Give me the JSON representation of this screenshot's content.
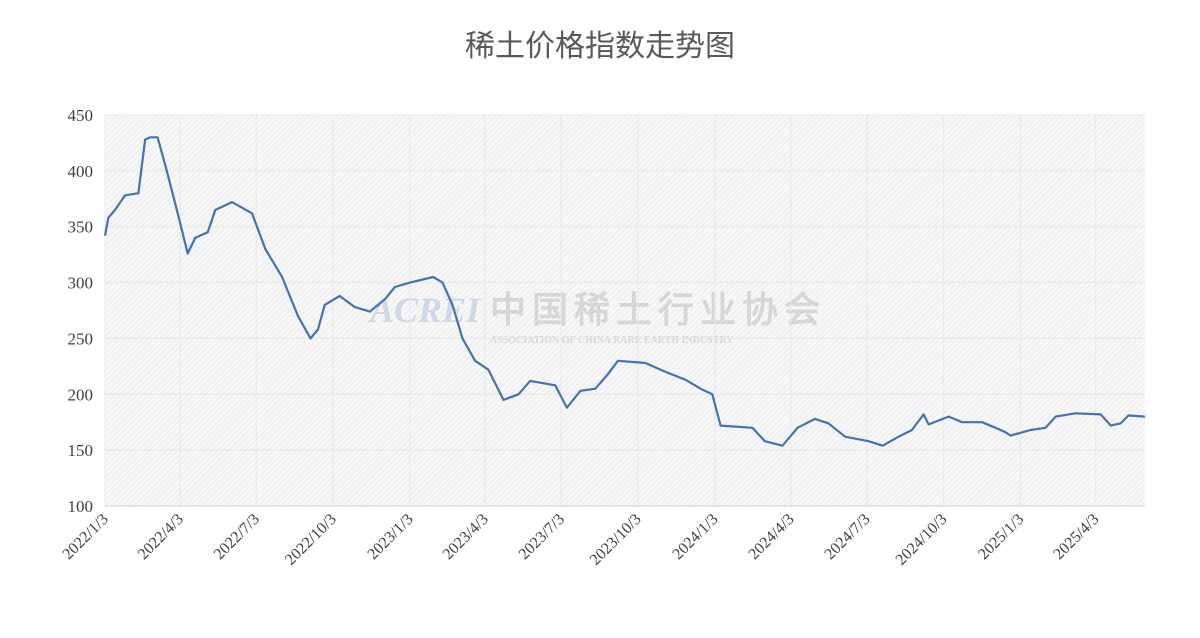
{
  "chart_data": {
    "type": "line",
    "title": "稀土价格指数走势图",
    "watermark": {
      "logo": "ACREI",
      "name": "中国稀土行业协会",
      "name_en": "ASSOCIATION OF CHINA RARE EARTH INDUSTRY"
    },
    "x": [
      "2022/1/3",
      "2022/1/7",
      "2022/1/15",
      "2022/1/27",
      "2022/2/12",
      "2022/2/20",
      "2022/2/26",
      "2022/3/7",
      "2022/3/18",
      "2022/3/31",
      "2022/4/12",
      "2022/4/21",
      "2022/5/6",
      "2022/5/15",
      "2022/6/4",
      "2022/6/28",
      "2022/7/14",
      "2022/8/3",
      "2022/8/22",
      "2022/9/6",
      "2022/9/15",
      "2022/9/23",
      "2022/10/11",
      "2022/10/29",
      "2022/11/16",
      "2022/12/4",
      "2022/12/16",
      "2023/1/3",
      "2023/1/31",
      "2023/2/11",
      "2023/2/23",
      "2023/3/7",
      "2023/3/22",
      "2023/4/7",
      "2023/4/25",
      "2023/5/13",
      "2023/5/27",
      "2023/6/26",
      "2023/7/10",
      "2023/7/26",
      "2023/8/13",
      "2023/8/28",
      "2023/9/9",
      "2023/10/12",
      "2023/11/5",
      "2023/11/29",
      "2023/12/17",
      "2023/12/31",
      "2024/1/10",
      "2024/2/17",
      "2024/3/3",
      "2024/3/24",
      "2024/4/11",
      "2024/5/2",
      "2024/5/18",
      "2024/6/7",
      "2024/7/5",
      "2024/7/22",
      "2024/8/10",
      "2024/8/26",
      "2024/9/9",
      "2024/9/15",
      "2024/10/9",
      "2024/10/25",
      "2024/11/18",
      "2024/12/4",
      "2024/12/16",
      "2024/12/22",
      "2025/1/15",
      "2025/2/2",
      "2025/2/14",
      "2025/3/10",
      "2025/4/9",
      "2025/4/21",
      "2025/5/3",
      "2025/5/12",
      "2025/6/1"
    ],
    "series": [
      {
        "name": "稀土价格指数",
        "color": "#4472b4",
        "values": [
          342,
          358,
          365,
          378,
          380,
          428,
          430,
          430,
          400,
          362,
          326,
          340,
          345,
          365,
          372,
          362,
          330,
          305,
          270,
          250,
          258,
          280,
          288,
          278,
          274,
          285,
          296,
          300,
          305,
          300,
          280,
          250,
          230,
          222,
          195,
          200,
          212,
          208,
          188,
          203,
          205,
          218,
          230,
          228,
          220,
          213,
          205,
          200,
          172,
          170,
          158,
          154,
          170,
          178,
          174,
          162,
          158,
          154,
          162,
          168,
          182,
          173,
          180,
          175,
          175,
          170,
          166,
          163,
          168,
          170,
          180,
          183,
          182,
          172,
          174,
          181,
          180
        ]
      }
    ],
    "xlim": [
      "2022/1/3",
      "2025/6/1"
    ],
    "xticks": [
      "2022/1/3",
      "2022/4/3",
      "2022/7/3",
      "2022/10/3",
      "2023/1/3",
      "2023/4/3",
      "2023/7/3",
      "2023/10/3",
      "2024/1/3",
      "2024/4/3",
      "2024/7/3",
      "2024/10/3",
      "2025/1/3",
      "2025/4/3"
    ],
    "ylim": [
      100,
      450
    ],
    "yticks": [
      100,
      150,
      200,
      250,
      300,
      350,
      400,
      450
    ],
    "grid": true
  }
}
